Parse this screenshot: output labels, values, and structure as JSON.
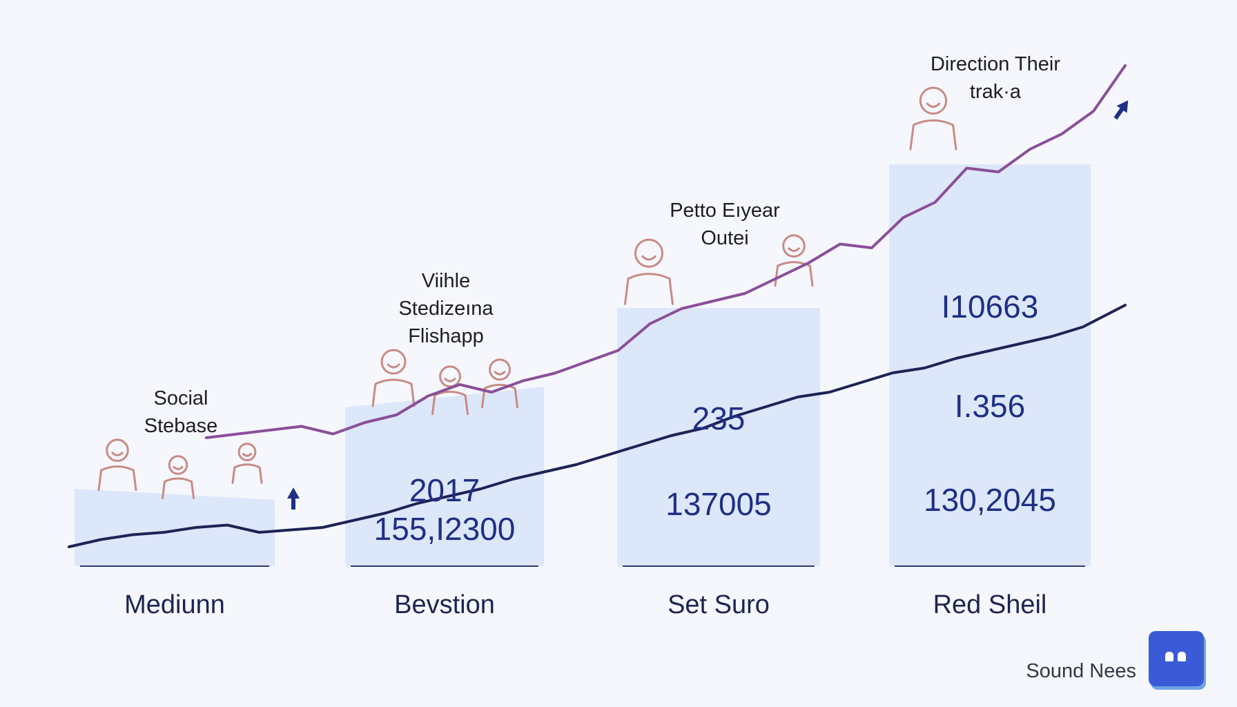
{
  "colors": {
    "background": "#f5f7fc",
    "bar_fill": "#dde7fa",
    "baseline": "#2c3a7a",
    "value_text": "#1f2f86",
    "series_dark": "#1d2356",
    "series_purple": "#8a4f9a",
    "icon_stroke": "#c98a84",
    "brand_badge": "#3b5bd6"
  },
  "chart_data": {
    "type": "bar",
    "categories": [
      "Mediunn",
      "Bevstion",
      "Set Suro",
      "Red Sheil"
    ],
    "bar_value_labels": [
      [],
      [
        "2017",
        "155,I2300"
      ],
      [
        "235",
        "137005"
      ],
      [
        "I10663",
        "I.356",
        "130,2045"
      ]
    ],
    "overlay_lines": {
      "type": "line",
      "series": [
        {
          "x": [
            0,
            3,
            6,
            9,
            12,
            15,
            18,
            21,
            24,
            27,
            30,
            33,
            36,
            39,
            42,
            45,
            48,
            51,
            54,
            57,
            60,
            63,
            66,
            69,
            72,
            75,
            78,
            81,
            84,
            87,
            90,
            93,
            96,
            100
          ],
          "values": [
            0,
            3,
            5,
            6,
            8,
            9,
            6,
            7,
            8,
            11,
            14,
            18,
            21,
            24,
            28,
            31,
            34,
            38,
            42,
            46,
            49,
            54,
            58,
            62,
            64,
            68,
            72,
            74,
            78,
            81,
            84,
            87,
            91,
            100
          ]
        },
        {
          "x": [
            13,
            16,
            19,
            22,
            25,
            28,
            31,
            34,
            37,
            40,
            43,
            46,
            49,
            52,
            55,
            58,
            61,
            64,
            67,
            70,
            73,
            76,
            79,
            82,
            85,
            88,
            91,
            94,
            97,
            100
          ],
          "values": [
            12,
            13,
            14,
            15,
            13,
            16,
            18,
            23,
            26,
            24,
            27,
            29,
            32,
            35,
            42,
            46,
            48,
            50,
            54,
            58,
            63,
            62,
            70,
            74,
            83,
            82,
            88,
            92,
            98,
            110
          ]
        }
      ]
    },
    "annotations": [
      {
        "text": "Social\nStebase"
      },
      {
        "text": "Viihle\nStedizeına\nFlishapp"
      },
      {
        "text": "Petto Eıyear\nOutei"
      },
      {
        "text": "Direction Their\ntrak·a"
      }
    ],
    "grid": false,
    "legend": "none"
  },
  "brand": {
    "name": "Sound Nees",
    "icon": "app-badge-icon"
  }
}
